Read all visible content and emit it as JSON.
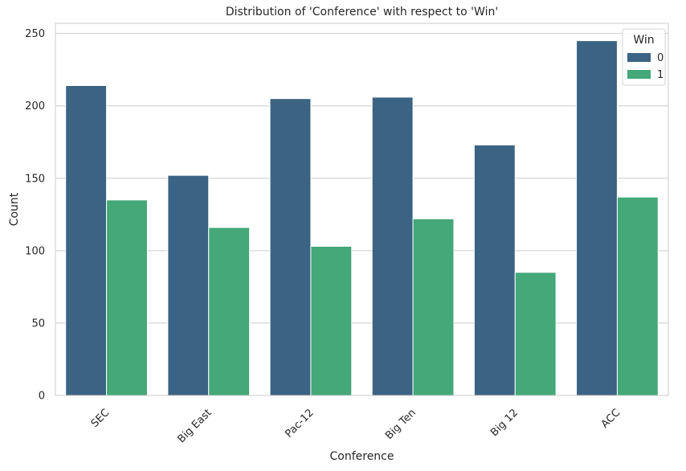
{
  "chart_data": {
    "type": "bar",
    "title": "Distribution of 'Conference' with respect to 'Win'",
    "xlabel": "Conference",
    "ylabel": "Count",
    "categories": [
      "SEC",
      "Big East",
      "Pac-12",
      "Big Ten",
      "Big 12",
      "ACC"
    ],
    "series": [
      {
        "name": "0",
        "color": "#3b6383",
        "values": [
          214,
          152,
          205,
          206,
          173,
          245
        ]
      },
      {
        "name": "1",
        "color": "#44a878",
        "values": [
          135,
          116,
          103,
          122,
          85,
          137
        ]
      }
    ],
    "ylim": [
      0,
      257
    ],
    "yticks": [
      0,
      50,
      100,
      150,
      200,
      250
    ],
    "grid": true,
    "legend": {
      "title": "Win",
      "position": "top-right"
    },
    "xtick_rotation": -45
  }
}
